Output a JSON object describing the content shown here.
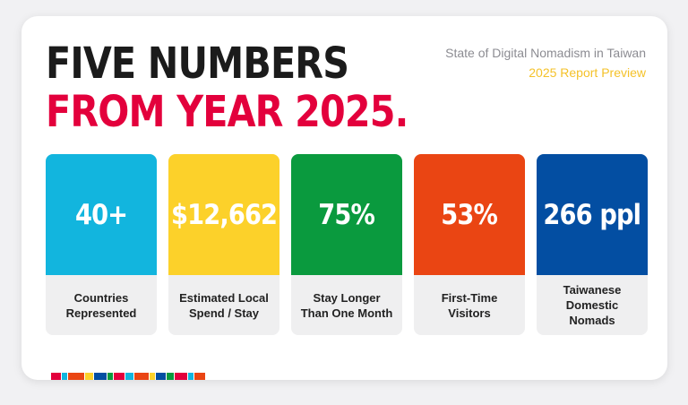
{
  "header": {
    "headline_line1": "FIVE NUMBERS",
    "headline_line2": "FROM YEAR 2025.",
    "subtitle": "State of Digital Nomadism in Taiwan",
    "preview": "2025 Report Preview"
  },
  "colors": {
    "headline_dark": "#1b1b1b",
    "headline_accent": "#e3003c",
    "preview_accent": "#f4c22a",
    "stat_cyan": "#12b5de",
    "stat_yellow": "#fcd12a",
    "stat_green": "#0a9a3e",
    "stat_orange": "#ea4513",
    "stat_blue": "#034ea2"
  },
  "stats": [
    {
      "value": "40+",
      "label": "Countries Represented",
      "color": "#12b5de"
    },
    {
      "value": "$12,662",
      "label": "Estimated Local Spend / Stay",
      "color": "#fcd12a"
    },
    {
      "value": "75%",
      "label": "Stay Longer Than One Month",
      "color": "#0a9a3e"
    },
    {
      "value": "53%",
      "label": "First-Time Visitors",
      "color": "#ea4513"
    },
    {
      "value": "266 ppl",
      "label": "Taiwanese Domestic Nomads",
      "color": "#034ea2"
    }
  ],
  "strip_colors": [
    "#e3003c",
    "#12b5de",
    "#ea4513",
    "#fcd12a",
    "#034ea2",
    "#0a9a3e",
    "#e3003c",
    "#12b5de",
    "#ea4513",
    "#fcd12a",
    "#034ea2",
    "#0a9a3e",
    "#e3003c",
    "#12b5de",
    "#ea4513"
  ]
}
